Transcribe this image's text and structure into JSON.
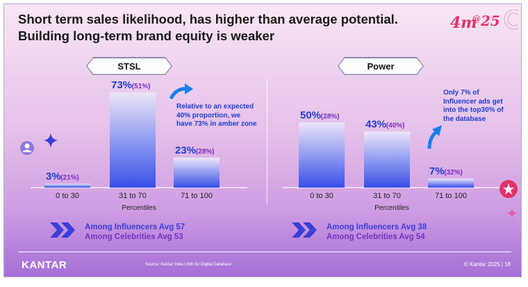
{
  "title": {
    "line1": "Short term sales likelihood,  has higher than average potential.",
    "line2": "Building  long-term brand equity is weaker"
  },
  "logo": {
    "text_main": "4m",
    "text_at": "@",
    "text_num": "25"
  },
  "colors": {
    "bar_top": "#e8e2f7",
    "bar_bottom": "#3650e8",
    "value_blue": "#1f3fd0",
    "paren_purple": "#7a2fc0",
    "accent_pink": "#e2336b"
  },
  "panels": [
    {
      "label": "STSL",
      "note": [
        "Relative to an expected",
        "40% proportion, we",
        "have 73% in amber zone"
      ],
      "avg_line1": "Among Influencers Avg 57",
      "avg_line2": "Among Celebrities Avg 53"
    },
    {
      "label": "Power",
      "note": [
        "Only 7% of",
        "Influencer ads get",
        "into the top30% of",
        "the database"
      ],
      "avg_line1": "Among Influencers Avg 38",
      "avg_line2": "Among Celebrities Avg 54"
    }
  ],
  "chart_data": [
    {
      "type": "bar",
      "title": "STSL",
      "categories": [
        "0 to 30",
        "31 to 70",
        "71 to 100"
      ],
      "values": [
        3,
        73,
        23
      ],
      "value_labels": [
        "3%",
        "73%",
        "23%"
      ],
      "secondary_labels": [
        "(21%)",
        "(51%)",
        "(28%)"
      ],
      "xlabel": "Percentiles",
      "ylabel": "",
      "ylim": [
        0,
        80
      ]
    },
    {
      "type": "bar",
      "title": "Power",
      "categories": [
        "0 to 30",
        "31 to 70",
        "71 to 100"
      ],
      "values": [
        50,
        43,
        7
      ],
      "value_labels": [
        "50%",
        "43%",
        "7%"
      ],
      "secondary_labels": [
        "(28%)",
        "(40%)",
        "(32%)"
      ],
      "xlabel": "Percentiles",
      "ylabel": "",
      "ylim": [
        0,
        80
      ]
    }
  ],
  "footer": {
    "brand": "KANTAR",
    "source": "Source: Kantar India LINK for Digital Database",
    "copyright": "© Kantar 2025 | 18"
  }
}
